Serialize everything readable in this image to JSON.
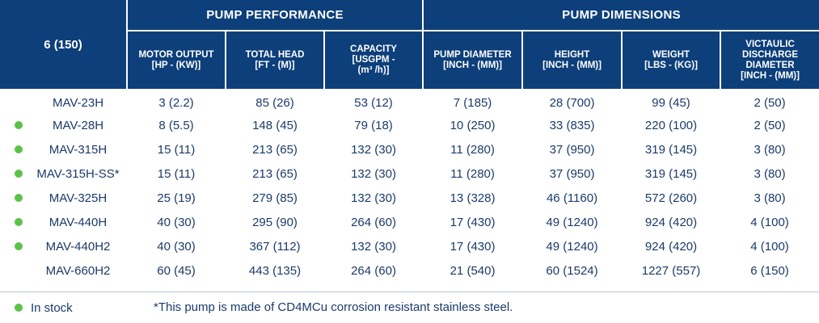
{
  "table": {
    "size_label": "6 (150)",
    "groups": {
      "performance": "PUMP PERFORMANCE",
      "dimensions": "PUMP DIMENSIONS"
    },
    "columns": {
      "motor_output": "MOTOR OUTPUT\n[HP - (KW)]",
      "total_head": "TOTAL HEAD\n[FT - (M)]",
      "capacity": "CAPACITY\n[USGPM -\n(m³ /h)]",
      "pump_diameter": "PUMP DIAMETER\n[INCH - (MM)]",
      "height": "HEIGHT\n[INCH - (MM)]",
      "weight": "WEIGHT\n[LBS - (KG)]",
      "discharge": "VICTAULIC\nDISCHARGE\nDIAMETER\n[INCH - (MM)]"
    },
    "rows": [
      {
        "model": "MAV-23H",
        "in_stock": false,
        "motor": "3 (2.2)",
        "head": "85 (26)",
        "capacity": "53 (12)",
        "diameter": "7 (185)",
        "height": "28 (700)",
        "weight": "99 (45)",
        "discharge": "2 (50)"
      },
      {
        "model": "MAV-28H",
        "in_stock": true,
        "motor": "8 (5.5)",
        "head": "148 (45)",
        "capacity": "79 (18)",
        "diameter": "10 (250)",
        "height": "33 (835)",
        "weight": "220 (100)",
        "discharge": "2 (50)"
      },
      {
        "model": "MAV-315H",
        "in_stock": true,
        "motor": "15 (11)",
        "head": "213 (65)",
        "capacity": "132 (30)",
        "diameter": "11 (280)",
        "height": "37 (950)",
        "weight": "319 (145)",
        "discharge": "3 (80)"
      },
      {
        "model": "MAV-315H-SS*",
        "in_stock": true,
        "motor": "15 (11)",
        "head": "213 (65)",
        "capacity": "132 (30)",
        "diameter": "11 (280)",
        "height": "37 (950)",
        "weight": "319 (145)",
        "discharge": "3 (80)"
      },
      {
        "model": "MAV-325H",
        "in_stock": true,
        "motor": "25 (19)",
        "head": "279 (85)",
        "capacity": "132 (30)",
        "diameter": "13 (328)",
        "height": "46 (1160)",
        "weight": "572 (260)",
        "discharge": "3 (80)"
      },
      {
        "model": "MAV-440H",
        "in_stock": true,
        "motor": "40 (30)",
        "head": "295 (90)",
        "capacity": "264 (60)",
        "diameter": "17 (430)",
        "height": "49 (1240)",
        "weight": "924 (420)",
        "discharge": "4 (100)"
      },
      {
        "model": "MAV-440H2",
        "in_stock": true,
        "motor": "40 (30)",
        "head": "367 (112)",
        "capacity": "132 (30)",
        "diameter": "17 (430)",
        "height": "49 (1240)",
        "weight": "924 (420)",
        "discharge": "4 (100)"
      },
      {
        "model": "MAV-660H2",
        "in_stock": false,
        "motor": "60 (45)",
        "head": "443 (135)",
        "capacity": "264 (60)",
        "diameter": "21 (540)",
        "height": "60 (1524)",
        "weight": "1227 (557)",
        "discharge": "6 (150)"
      }
    ]
  },
  "legend": {
    "in_stock_label": "In stock"
  },
  "footnote": "*This pump is made of CD4MCu corrosion resistant stainless steel.",
  "colors": {
    "header_bg": "#0d3f7a",
    "text": "#1b3a6b",
    "stock_dot": "#5cc14a"
  }
}
